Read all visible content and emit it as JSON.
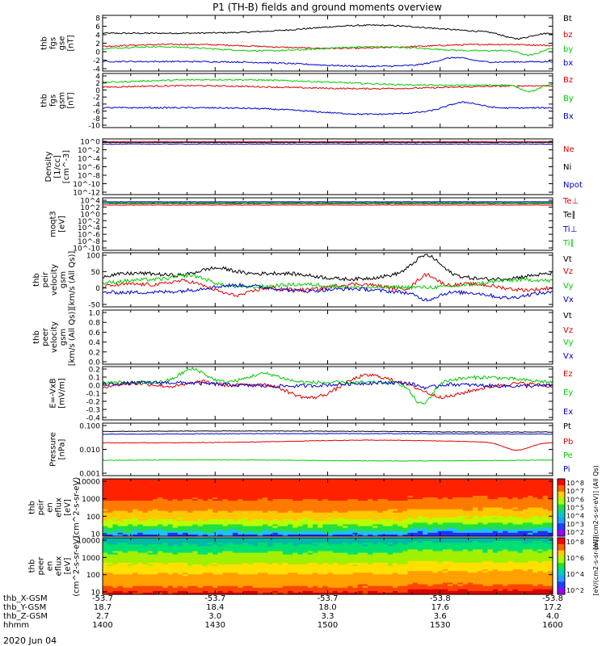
{
  "title": "P1 (TH-B) fields and ground moments overview",
  "date": "2020 Jun 04",
  "colors": {
    "black": "#000000",
    "red": "#e00000",
    "green": "#00cc00",
    "blue": "#0000cc"
  },
  "chart_data": [
    {
      "id": "fgs_gse",
      "type": "line",
      "ylabel": [
        "thb",
        "fgs",
        "gse",
        "[nT]"
      ],
      "yticks": [
        "8",
        "6",
        "4",
        "2",
        "0",
        "-2",
        "-4"
      ],
      "ylim": [
        -5,
        9
      ],
      "series": [
        {
          "name": "Bt",
          "color": "black"
        },
        {
          "name": "bz",
          "color": "red"
        },
        {
          "name": "by",
          "color": "green"
        },
        {
          "name": "bx",
          "color": "blue"
        }
      ]
    },
    {
      "id": "fgs_gsm",
      "type": "line",
      "ylabel": [
        "thb",
        "fgs",
        "gsm",
        "[nT]"
      ],
      "yticks": [
        "4",
        "2",
        "0",
        "-2",
        "-4",
        "-6",
        "-8",
        "-10"
      ],
      "ylim": [
        -11,
        4
      ],
      "series": [
        {
          "name": "Bz",
          "color": "red"
        },
        {
          "name": "By",
          "color": "green"
        },
        {
          "name": "Bx",
          "color": "blue"
        }
      ]
    },
    {
      "id": "density",
      "type": "line",
      "ylabel": [
        "Density",
        "[1/cc]",
        "[cm^-3]"
      ],
      "yticks": [
        "10^0",
        "10^-2",
        "10^-4",
        "10^-6",
        "10^-8",
        "10^-10",
        "10^-12"
      ],
      "ylim": [
        -13,
        1
      ],
      "log": true,
      "series": [
        {
          "name": "Ne",
          "color": "red"
        },
        {
          "name": "Ni",
          "color": "black"
        },
        {
          "name": "Npot",
          "color": "blue"
        }
      ]
    },
    {
      "id": "temp",
      "type": "line",
      "ylabel": [
        "moqt3",
        "[eV]"
      ],
      "yticks": [
        "10^4",
        "10^2",
        "10^0",
        "10^-2",
        "10^-4",
        "10^-6",
        "10^-8",
        "10^-10"
      ],
      "ylim": [
        -11,
        5
      ],
      "log": true,
      "series": [
        {
          "name": "Te⊥",
          "color": "red"
        },
        {
          "name": "Te∥",
          "color": "black"
        },
        {
          "name": "Ti⊥",
          "color": "blue"
        },
        {
          "name": "Ti∥",
          "color": "green"
        }
      ]
    },
    {
      "id": "peir_vel",
      "type": "line",
      "ylabel": [
        "thb",
        "peir",
        "velocity",
        "gsm",
        "[km/s (All Qs)]"
      ],
      "yticks": [
        "100",
        "50",
        "0",
        "-50"
      ],
      "ylim": [
        -50,
        100
      ],
      "series": [
        {
          "name": "Vt",
          "color": "black"
        },
        {
          "name": "Vz",
          "color": "red"
        },
        {
          "name": "Vy",
          "color": "green"
        },
        {
          "name": "Vx",
          "color": "blue"
        }
      ]
    },
    {
      "id": "peer_vel",
      "type": "line",
      "ylabel": [
        "thb",
        "peer",
        "velocity",
        "gsm",
        "[km/s (All Qs)]"
      ],
      "yticks": [
        "1.0",
        "0.8",
        "0.6",
        "0.4",
        "0.2",
        "0.0"
      ],
      "ylim": [
        0,
        1
      ],
      "series": [
        {
          "name": "Vt",
          "color": "black"
        },
        {
          "name": "Vz",
          "color": "red"
        },
        {
          "name": "Vy",
          "color": "green"
        },
        {
          "name": "Vx",
          "color": "blue"
        }
      ]
    },
    {
      "id": "efield",
      "type": "line",
      "ylabel": [
        "E=-VxB",
        "[mV/m]"
      ],
      "yticks": [
        "0.2",
        "0.1",
        "0.0",
        "-0.1",
        "-0.2",
        "-0.3",
        "-0.4"
      ],
      "ylim": [
        -0.4,
        0.2
      ],
      "series": [
        {
          "name": "Ez",
          "color": "red"
        },
        {
          "name": "Ey",
          "color": "green"
        },
        {
          "name": "Ex",
          "color": "blue"
        }
      ]
    },
    {
      "id": "pressure",
      "type": "line",
      "ylabel": [
        "Pressure",
        "[nPa]"
      ],
      "yticks": [
        "0.100",
        "0.010",
        "0.001"
      ],
      "ylim": [
        -3,
        -1
      ],
      "log": true,
      "series": [
        {
          "name": "Pt",
          "color": "black"
        },
        {
          "name": "Pb",
          "color": "red"
        },
        {
          "name": "Pe",
          "color": "green"
        },
        {
          "name": "Pi",
          "color": "blue"
        }
      ]
    },
    {
      "id": "peir_spec",
      "type": "heatmap",
      "ylabel": [
        "thb",
        "peir",
        "en",
        "eflux",
        "[eV]",
        "(cm^2-s-sr-eV)"
      ],
      "yticks": [
        "10000",
        "1000",
        "100",
        "10"
      ],
      "ylim": [
        5,
        25000
      ],
      "cbar_ticks": [
        "10^8",
        "10^7",
        "10^6",
        "10^5",
        "10^4",
        "10^3",
        "10^2"
      ],
      "cbar_label": "[eV/(cm2-s-sr-eV)] (All Qs)"
    },
    {
      "id": "peer_spec",
      "type": "heatmap",
      "ylabel": [
        "thb",
        "peer",
        "en",
        "eflux",
        "[eV]",
        "(cm^2-s-sr-eV)"
      ],
      "yticks": [
        "10000",
        "1000",
        "100",
        "10"
      ],
      "ylim": [
        5,
        25000
      ],
      "cbar_ticks": [
        "10^8",
        "10^6",
        "10^4",
        "10^2"
      ],
      "cbar_label": "[eV/(cm2-s-sr-eV)]"
    }
  ],
  "xaxis": {
    "labels": [
      "thb_X-GSM",
      "thb_Y-GSM",
      "thb_Z-GSM",
      "hhmm"
    ],
    "ticks": [
      {
        "x": "-53.7",
        "y": "18.7",
        "z": "2.7",
        "t": "1400"
      },
      {
        "x": "-53.7",
        "y": "18.4",
        "z": "3.0",
        "t": "1430"
      },
      {
        "x": "-53.7",
        "y": "18.0",
        "z": "3.3",
        "t": "1500"
      },
      {
        "x": "-53.8",
        "y": "17.6",
        "z": "3.6",
        "t": "1530"
      },
      {
        "x": "-53.8",
        "y": "17.2",
        "z": "4.0",
        "t": "1600"
      }
    ]
  }
}
